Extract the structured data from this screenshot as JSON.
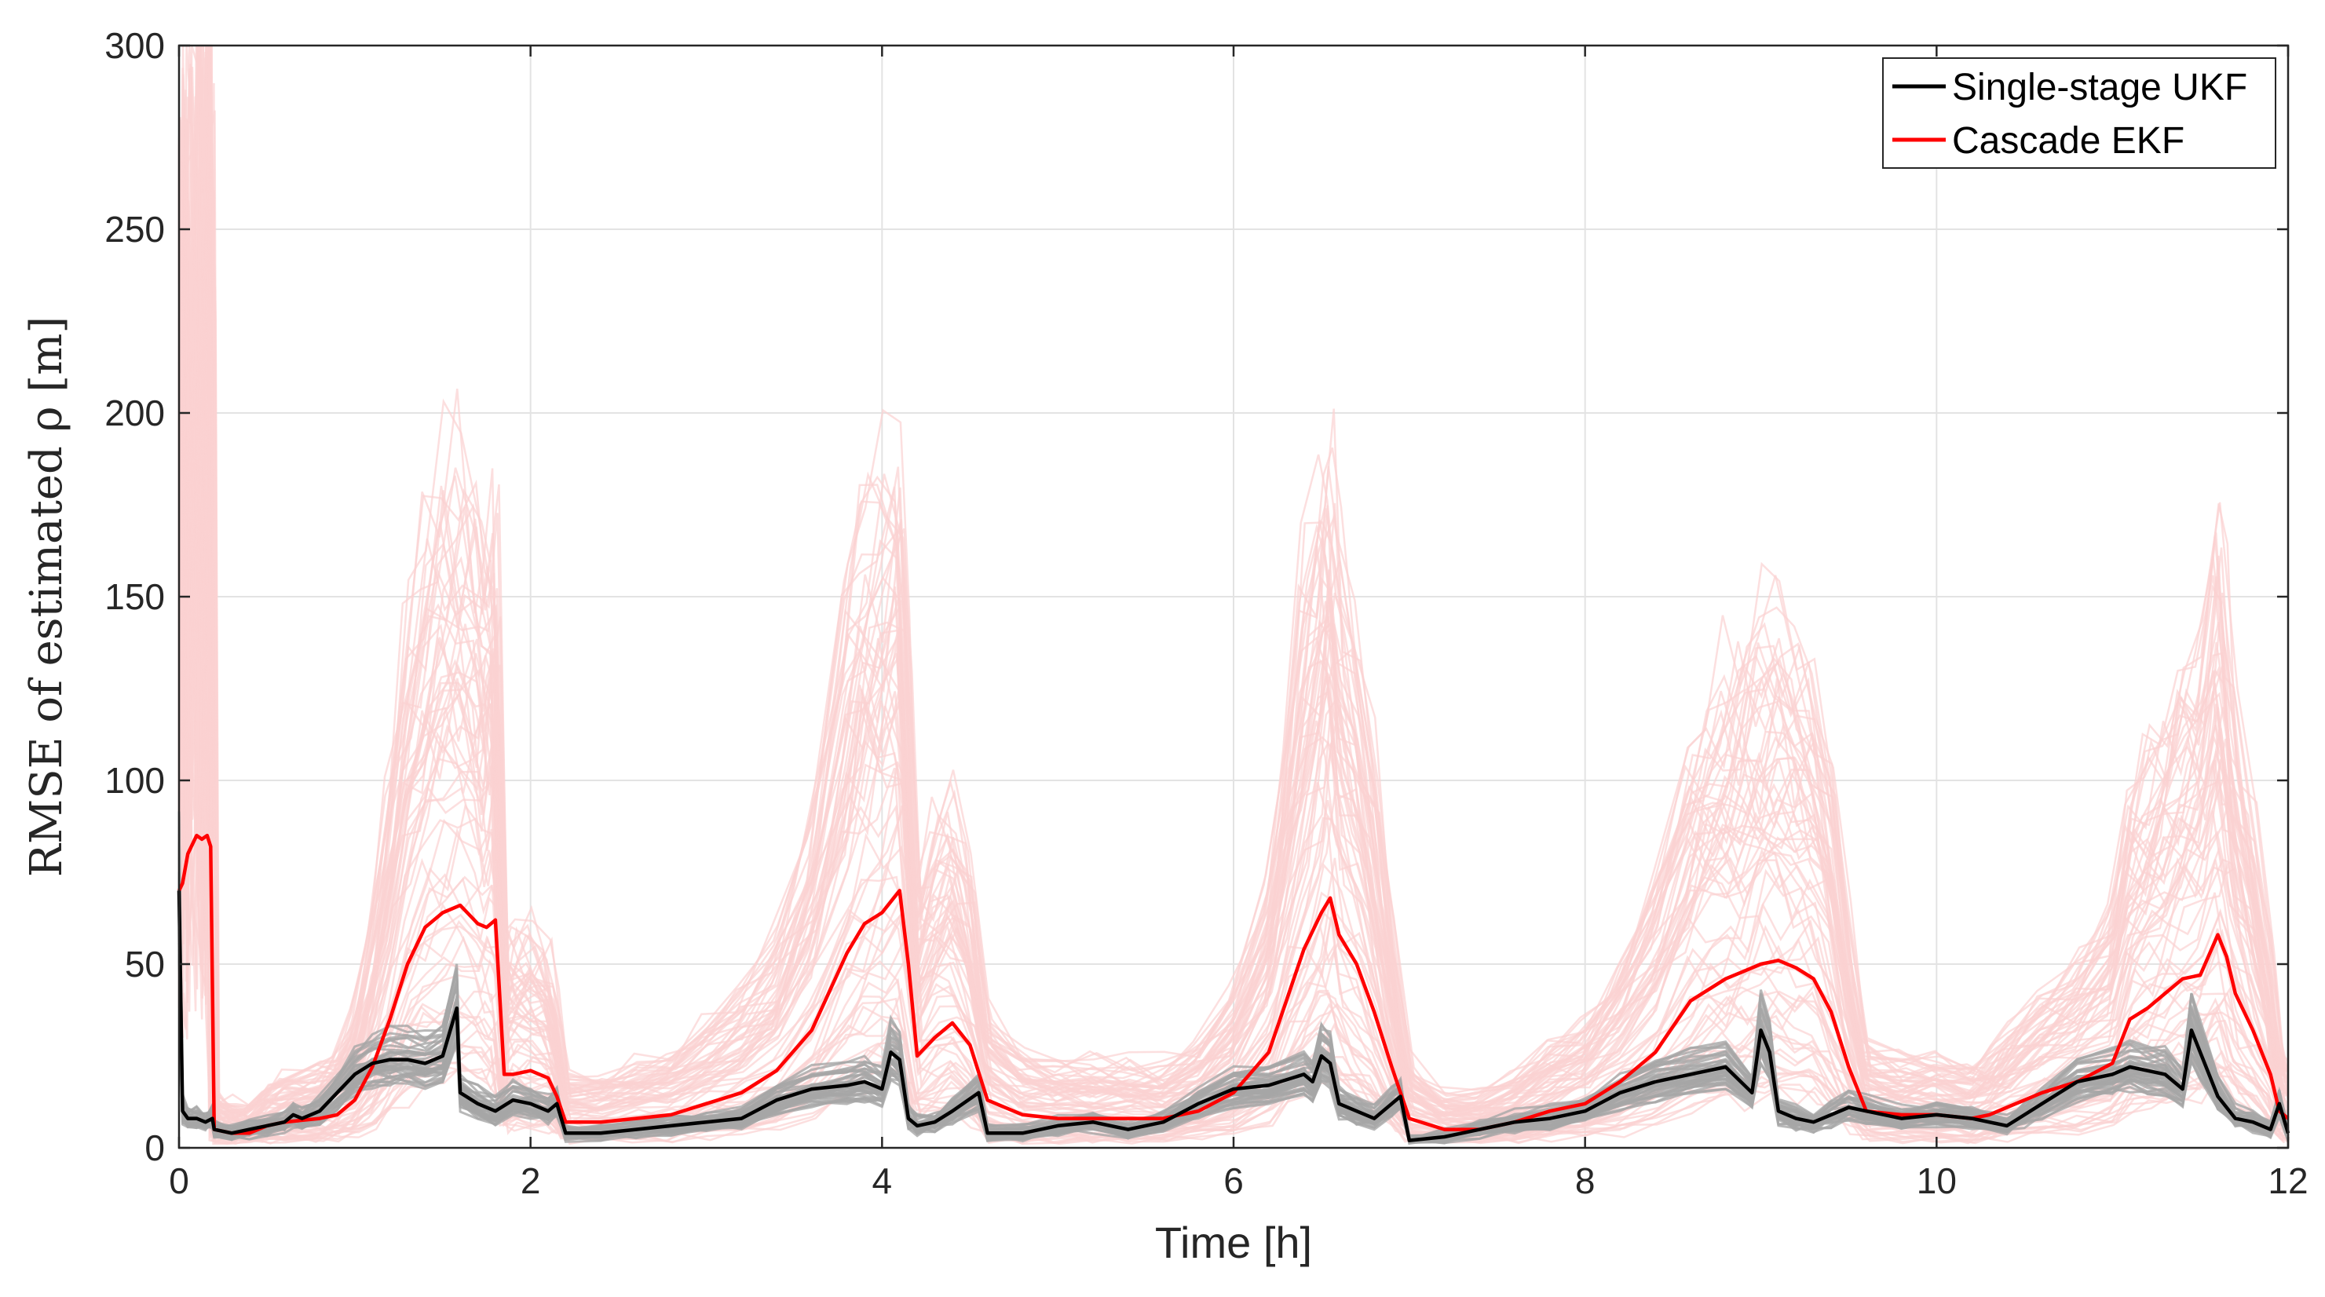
{
  "chart_data": {
    "type": "line",
    "xlabel": "Time [h]",
    "ylabel": "RMSE of estimated ρ [m]",
    "xlim": [
      0,
      12
    ],
    "ylim": [
      0,
      300
    ],
    "xticks": [
      0,
      2,
      4,
      6,
      8,
      10,
      12
    ],
    "yticks": [
      0,
      50,
      100,
      150,
      200,
      250,
      300
    ],
    "grid": true,
    "legend_position": "top-right",
    "series": [
      {
        "name": "Single-stage UKF",
        "color": "#000000",
        "band_color": "#a6a6a6",
        "x": [
          0.0,
          0.02,
          0.05,
          0.1,
          0.15,
          0.19,
          0.2,
          0.3,
          0.4,
          0.5,
          0.6,
          0.65,
          0.7,
          0.8,
          0.9,
          1.0,
          1.1,
          1.2,
          1.3,
          1.4,
          1.5,
          1.58,
          1.6,
          1.7,
          1.8,
          1.9,
          2.0,
          2.1,
          2.15,
          2.2,
          2.4,
          2.6,
          2.8,
          3.0,
          3.2,
          3.4,
          3.6,
          3.8,
          3.9,
          4.0,
          4.05,
          4.1,
          4.15,
          4.2,
          4.3,
          4.4,
          4.55,
          4.6,
          4.8,
          5.0,
          5.2,
          5.4,
          5.6,
          5.8,
          6.0,
          6.2,
          6.4,
          6.45,
          6.5,
          6.55,
          6.6,
          6.7,
          6.8,
          6.9,
          6.95,
          7.0,
          7.2,
          7.4,
          7.6,
          7.8,
          8.0,
          8.2,
          8.4,
          8.6,
          8.8,
          8.95,
          9.0,
          9.05,
          9.1,
          9.2,
          9.3,
          9.4,
          9.5,
          9.6,
          9.8,
          10.0,
          10.2,
          10.4,
          10.5,
          10.6,
          10.8,
          11.0,
          11.1,
          11.2,
          11.3,
          11.4,
          11.45,
          11.5,
          11.6,
          11.7,
          11.8,
          11.9,
          11.95,
          12.0
        ],
        "y": [
          70,
          10,
          8,
          8,
          7,
          8,
          5,
          4,
          5,
          6,
          7,
          9,
          8,
          10,
          15,
          20,
          23,
          24,
          24,
          23,
          25,
          38,
          15,
          12,
          10,
          13,
          12,
          10,
          12,
          4,
          4,
          5,
          6,
          7,
          8,
          13,
          16,
          17,
          18,
          16,
          26,
          24,
          8,
          6,
          7,
          10,
          15,
          4,
          4,
          6,
          7,
          5,
          7,
          12,
          16,
          17,
          20,
          18,
          25,
          23,
          12,
          10,
          8,
          12,
          14,
          2,
          3,
          5,
          7,
          8,
          10,
          15,
          18,
          20,
          22,
          15,
          32,
          26,
          10,
          8,
          7,
          9,
          11,
          10,
          8,
          9,
          8,
          6,
          9,
          12,
          18,
          20,
          22,
          21,
          20,
          16,
          32,
          26,
          14,
          8,
          7,
          5,
          12,
          4
        ]
      },
      {
        "name": "Cascade EKF",
        "color": "#ff0000",
        "band_color": "#fbd2d2",
        "x": [
          0.0,
          0.02,
          0.05,
          0.1,
          0.13,
          0.16,
          0.18,
          0.2,
          0.3,
          0.4,
          0.5,
          0.6,
          0.8,
          0.9,
          1.0,
          1.1,
          1.2,
          1.3,
          1.4,
          1.5,
          1.6,
          1.7,
          1.75,
          1.8,
          1.85,
          1.9,
          2.0,
          2.1,
          2.15,
          2.2,
          2.4,
          2.6,
          2.8,
          3.0,
          3.2,
          3.4,
          3.6,
          3.8,
          3.9,
          4.0,
          4.1,
          4.15,
          4.2,
          4.3,
          4.4,
          4.5,
          4.6,
          4.8,
          5.0,
          5.2,
          5.4,
          5.6,
          5.8,
          6.0,
          6.2,
          6.3,
          6.4,
          6.5,
          6.55,
          6.6,
          6.7,
          6.8,
          6.9,
          7.0,
          7.2,
          7.4,
          7.6,
          7.8,
          8.0,
          8.2,
          8.4,
          8.6,
          8.7,
          8.8,
          8.9,
          9.0,
          9.1,
          9.2,
          9.3,
          9.4,
          9.5,
          9.6,
          9.8,
          10.0,
          10.2,
          10.3,
          10.4,
          10.6,
          10.8,
          11.0,
          11.1,
          11.2,
          11.3,
          11.4,
          11.5,
          11.6,
          11.65,
          11.7,
          11.8,
          11.9,
          11.95,
          12.0
        ],
        "y": [
          70,
          72,
          80,
          85,
          84,
          85,
          82,
          5,
          4,
          4,
          6,
          7,
          8,
          9,
          13,
          22,
          35,
          50,
          60,
          64,
          66,
          61,
          60,
          62,
          20,
          20,
          21,
          19,
          14,
          7,
          7,
          8,
          9,
          12,
          15,
          21,
          32,
          53,
          61,
          64,
          70,
          50,
          25,
          30,
          34,
          28,
          13,
          9,
          8,
          8,
          8,
          8,
          10,
          15,
          26,
          40,
          54,
          64,
          68,
          58,
          50,
          37,
          22,
          8,
          5,
          5,
          7,
          10,
          12,
          18,
          26,
          40,
          43,
          46,
          48,
          50,
          51,
          49,
          46,
          37,
          22,
          10,
          9,
          9,
          8,
          9,
          11,
          15,
          18,
          23,
          35,
          38,
          42,
          46,
          47,
          58,
          52,
          42,
          32,
          20,
          10,
          8
        ]
      }
    ]
  }
}
